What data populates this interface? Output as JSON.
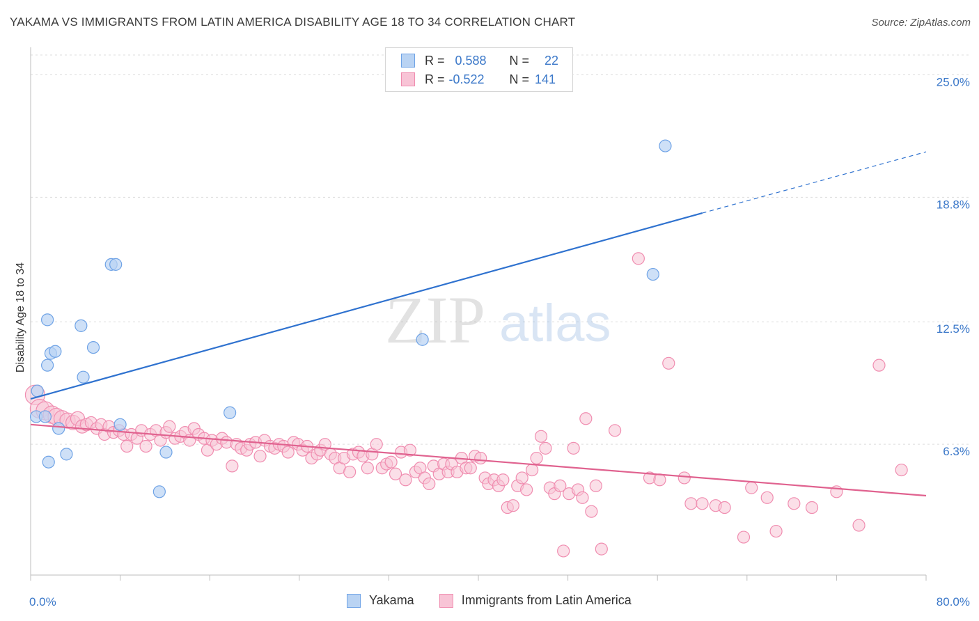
{
  "title": "YAKAMA VS IMMIGRANTS FROM LATIN AMERICA DISABILITY AGE 18 TO 34 CORRELATION CHART",
  "source": "Source: ZipAtlas.com",
  "watermark_zip": "ZIP",
  "watermark_atlas": "atlas",
  "colors": {
    "yakama": "#6fa3e6",
    "yakama_fill": "#b9d3f3",
    "yakama_line": "#2f72cf",
    "latin": "#f08db0",
    "latin_fill": "#f8c4d6",
    "latin_line": "#e0628f",
    "tick": "#3b78c9"
  },
  "legend": {
    "rows": [
      {
        "r_label": "R =",
        "r_value": "0.588",
        "n_label": "N =",
        "n_value": "22"
      },
      {
        "r_label": "R =",
        "r_value": "-0.522",
        "n_label": "N =",
        "n_value": "141"
      }
    ]
  },
  "bottom_legend": [
    "Yakama",
    "Immigrants from Latin America"
  ],
  "chart_data": {
    "type": "scatter",
    "xlabel": "",
    "ylabel": "Disability Age 18 to 34",
    "xlim": [
      0,
      80
    ],
    "ylim": [
      0,
      26
    ],
    "x_tick_labels": [
      "0.0%",
      "80.0%"
    ],
    "y_ticks": [
      6.3,
      12.5,
      18.8,
      25.0
    ],
    "y_tick_labels": [
      "6.3%",
      "12.5%",
      "18.8%",
      "25.0%"
    ],
    "grid": true,
    "series": [
      {
        "name": "Yakama",
        "trend": {
          "x0": 0,
          "y0": 8.6,
          "x1": 60,
          "y1": 18.0,
          "dashed_to_x": 80,
          "dashed_to_y": 21.1
        },
        "points": [
          [
            0.5,
            7.7
          ],
          [
            0.6,
            9.0
          ],
          [
            1.3,
            7.7
          ],
          [
            1.5,
            10.3
          ],
          [
            1.5,
            12.6
          ],
          [
            1.6,
            5.4
          ],
          [
            1.8,
            10.9
          ],
          [
            2.2,
            11.0
          ],
          [
            2.5,
            7.1
          ],
          [
            3.2,
            5.8
          ],
          [
            4.5,
            12.3
          ],
          [
            4.7,
            9.7
          ],
          [
            5.6,
            11.2
          ],
          [
            7.2,
            15.4
          ],
          [
            7.6,
            15.4
          ],
          [
            8.0,
            7.3
          ],
          [
            11.5,
            3.9
          ],
          [
            12.1,
            5.9
          ],
          [
            17.8,
            7.9
          ],
          [
            35.0,
            11.6
          ],
          [
            55.6,
            14.9
          ],
          [
            56.7,
            21.4
          ]
        ]
      },
      {
        "name": "Immigrants from Latin America",
        "trend": {
          "x0": 0,
          "y0": 7.3,
          "x1": 80,
          "y1": 3.7
        },
        "points": [
          [
            0.4,
            8.8
          ],
          [
            0.8,
            8.1
          ],
          [
            1.3,
            8.0
          ],
          [
            1.9,
            7.8
          ],
          [
            2.3,
            7.7
          ],
          [
            2.8,
            7.6
          ],
          [
            3.3,
            7.5
          ],
          [
            3.8,
            7.4
          ],
          [
            4.2,
            7.6
          ],
          [
            4.6,
            7.2
          ],
          [
            5.0,
            7.3
          ],
          [
            5.4,
            7.4
          ],
          [
            5.9,
            7.1
          ],
          [
            6.3,
            7.3
          ],
          [
            6.6,
            6.8
          ],
          [
            7.0,
            7.2
          ],
          [
            7.4,
            6.9
          ],
          [
            7.9,
            7.0
          ],
          [
            8.3,
            6.8
          ],
          [
            8.6,
            6.2
          ],
          [
            9.0,
            6.8
          ],
          [
            9.5,
            6.6
          ],
          [
            9.9,
            7.0
          ],
          [
            10.3,
            6.2
          ],
          [
            10.7,
            6.8
          ],
          [
            11.2,
            7.0
          ],
          [
            11.6,
            6.5
          ],
          [
            12.1,
            6.9
          ],
          [
            12.4,
            7.2
          ],
          [
            12.9,
            6.6
          ],
          [
            13.4,
            6.7
          ],
          [
            13.8,
            6.9
          ],
          [
            14.2,
            6.5
          ],
          [
            14.6,
            7.1
          ],
          [
            15.0,
            6.8
          ],
          [
            15.5,
            6.6
          ],
          [
            15.8,
            6.0
          ],
          [
            16.2,
            6.5
          ],
          [
            16.6,
            6.3
          ],
          [
            17.1,
            6.6
          ],
          [
            17.5,
            6.4
          ],
          [
            18.0,
            5.2
          ],
          [
            18.4,
            6.3
          ],
          [
            18.8,
            6.1
          ],
          [
            19.3,
            6.0
          ],
          [
            19.6,
            6.3
          ],
          [
            20.1,
            6.4
          ],
          [
            20.5,
            5.7
          ],
          [
            20.9,
            6.5
          ],
          [
            21.4,
            6.2
          ],
          [
            21.8,
            6.1
          ],
          [
            22.2,
            6.3
          ],
          [
            22.6,
            6.2
          ],
          [
            23.0,
            5.9
          ],
          [
            23.5,
            6.4
          ],
          [
            23.9,
            6.3
          ],
          [
            24.3,
            6.0
          ],
          [
            24.7,
            6.2
          ],
          [
            25.1,
            5.6
          ],
          [
            25.6,
            5.8
          ],
          [
            25.9,
            6.0
          ],
          [
            26.3,
            6.3
          ],
          [
            26.8,
            5.8
          ],
          [
            27.2,
            5.6
          ],
          [
            27.6,
            5.1
          ],
          [
            28.0,
            5.6
          ],
          [
            28.5,
            4.9
          ],
          [
            28.8,
            5.8
          ],
          [
            29.3,
            5.9
          ],
          [
            29.7,
            5.7
          ],
          [
            30.1,
            5.1
          ],
          [
            30.5,
            5.8
          ],
          [
            30.9,
            6.3
          ],
          [
            31.4,
            5.1
          ],
          [
            31.8,
            5.3
          ],
          [
            32.2,
            5.4
          ],
          [
            32.6,
            4.8
          ],
          [
            33.1,
            5.9
          ],
          [
            33.5,
            4.5
          ],
          [
            33.9,
            6.0
          ],
          [
            34.4,
            4.9
          ],
          [
            34.8,
            5.1
          ],
          [
            35.2,
            4.6
          ],
          [
            35.6,
            4.3
          ],
          [
            36.0,
            5.2
          ],
          [
            36.5,
            4.8
          ],
          [
            36.9,
            5.3
          ],
          [
            37.3,
            4.9
          ],
          [
            37.6,
            5.3
          ],
          [
            38.1,
            4.9
          ],
          [
            38.5,
            5.6
          ],
          [
            38.9,
            5.1
          ],
          [
            39.3,
            5.1
          ],
          [
            39.7,
            5.7
          ],
          [
            40.2,
            5.6
          ],
          [
            40.6,
            4.6
          ],
          [
            40.9,
            4.3
          ],
          [
            41.4,
            4.5
          ],
          [
            41.8,
            4.2
          ],
          [
            42.2,
            4.5
          ],
          [
            42.6,
            3.1
          ],
          [
            43.1,
            3.2
          ],
          [
            43.5,
            4.2
          ],
          [
            43.9,
            4.6
          ],
          [
            44.3,
            4.0
          ],
          [
            44.8,
            5.0
          ],
          [
            45.2,
            5.6
          ],
          [
            45.6,
            6.7
          ],
          [
            46.0,
            6.1
          ],
          [
            46.4,
            4.1
          ],
          [
            46.8,
            3.8
          ],
          [
            47.3,
            4.2
          ],
          [
            47.6,
            0.9
          ],
          [
            48.1,
            3.8
          ],
          [
            48.5,
            6.1
          ],
          [
            48.9,
            4.0
          ],
          [
            49.3,
            3.6
          ],
          [
            49.6,
            7.6
          ],
          [
            50.1,
            2.9
          ],
          [
            50.5,
            4.2
          ],
          [
            51.0,
            1.0
          ],
          [
            52.2,
            7.0
          ],
          [
            54.3,
            15.7
          ],
          [
            55.3,
            4.6
          ],
          [
            56.2,
            4.5
          ],
          [
            57.0,
            10.4
          ],
          [
            58.4,
            4.6
          ],
          [
            59.0,
            3.3
          ],
          [
            60.0,
            3.3
          ],
          [
            61.2,
            3.2
          ],
          [
            62.0,
            3.1
          ],
          [
            63.7,
            1.6
          ],
          [
            64.4,
            4.1
          ],
          [
            65.8,
            3.6
          ],
          [
            66.6,
            1.9
          ],
          [
            68.2,
            3.3
          ],
          [
            69.8,
            3.1
          ],
          [
            72.0,
            3.9
          ],
          [
            74.0,
            2.2
          ],
          [
            75.8,
            10.3
          ],
          [
            77.8,
            5.0
          ]
        ]
      }
    ]
  }
}
